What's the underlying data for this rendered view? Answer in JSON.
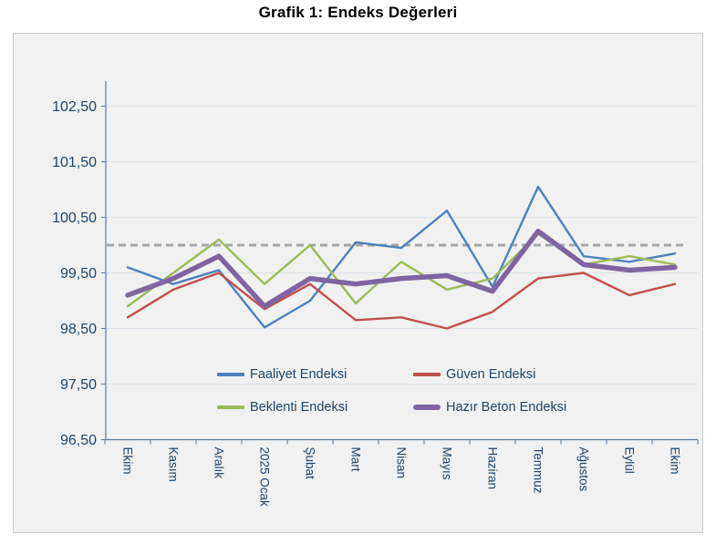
{
  "page": {
    "title": "Grafik 1: Endeks Değerleri"
  },
  "chart_data": {
    "type": "line",
    "title": "Grafik 1: Endeks Değerleri",
    "categories": [
      "Ekim",
      "Kasım",
      "Aralık",
      "2025 Ocak",
      "Şubat",
      "Mart",
      "Nisan",
      "Mayıs",
      "Haziran",
      "Temmuz",
      "Ağustos",
      "Eylül",
      "Ekim"
    ],
    "series": [
      {
        "name": "Faaliyet Endeksi",
        "color": "#4F81BD",
        "thickness": 2.4,
        "values": [
          99.6,
          99.3,
          99.55,
          98.52,
          99.0,
          100.05,
          99.95,
          100.62,
          99.25,
          101.05,
          99.8,
          99.7,
          99.85
        ]
      },
      {
        "name": "Güven Endeksi",
        "color": "#C0504D",
        "thickness": 2.4,
        "values": [
          98.7,
          99.2,
          99.5,
          98.85,
          99.3,
          98.65,
          98.7,
          98.5,
          98.8,
          99.4,
          99.5,
          99.1,
          99.3
        ]
      },
      {
        "name": "Beklenti Endeksi",
        "color": "#9BBB59",
        "thickness": 2.4,
        "values": [
          98.9,
          99.5,
          100.1,
          99.3,
          100.0,
          98.95,
          99.7,
          99.2,
          99.4,
          100.2,
          99.65,
          99.8,
          99.65
        ]
      },
      {
        "name": "Hazır Beton Endeksi",
        "color": "#8064A2",
        "thickness": 5.5,
        "values": [
          99.1,
          99.4,
          99.8,
          98.9,
          99.4,
          99.3,
          99.4,
          99.45,
          99.17,
          100.25,
          99.65,
          99.55,
          99.6
        ]
      }
    ],
    "reference_line": {
      "value": 100.0,
      "color": "#A6A6A6",
      "style": "dashed"
    },
    "y_axis": {
      "min": 96.5,
      "max": 102.5,
      "ticks": [
        {
          "value": 102.5,
          "label": "102,50"
        },
        {
          "value": 101.5,
          "label": "101,50"
        },
        {
          "value": 100.5,
          "label": "100,50"
        },
        {
          "value": 99.5,
          "label": "99,50"
        },
        {
          "value": 98.5,
          "label": "98,50"
        },
        {
          "value": 97.5,
          "label": "97,50"
        },
        {
          "value": 96.5,
          "label": "96,50"
        }
      ]
    },
    "grid": true,
    "legend_position": "inside-bottom"
  },
  "colors": {
    "axis_line": "#5A7BA0",
    "grid_line": "#DCE3EA",
    "text": "#20456B",
    "chart_bg": "#F0F1F0",
    "chart_border": "#C8CCCA",
    "page_bg": "#FFFFFF",
    "title_color": "#000000"
  }
}
